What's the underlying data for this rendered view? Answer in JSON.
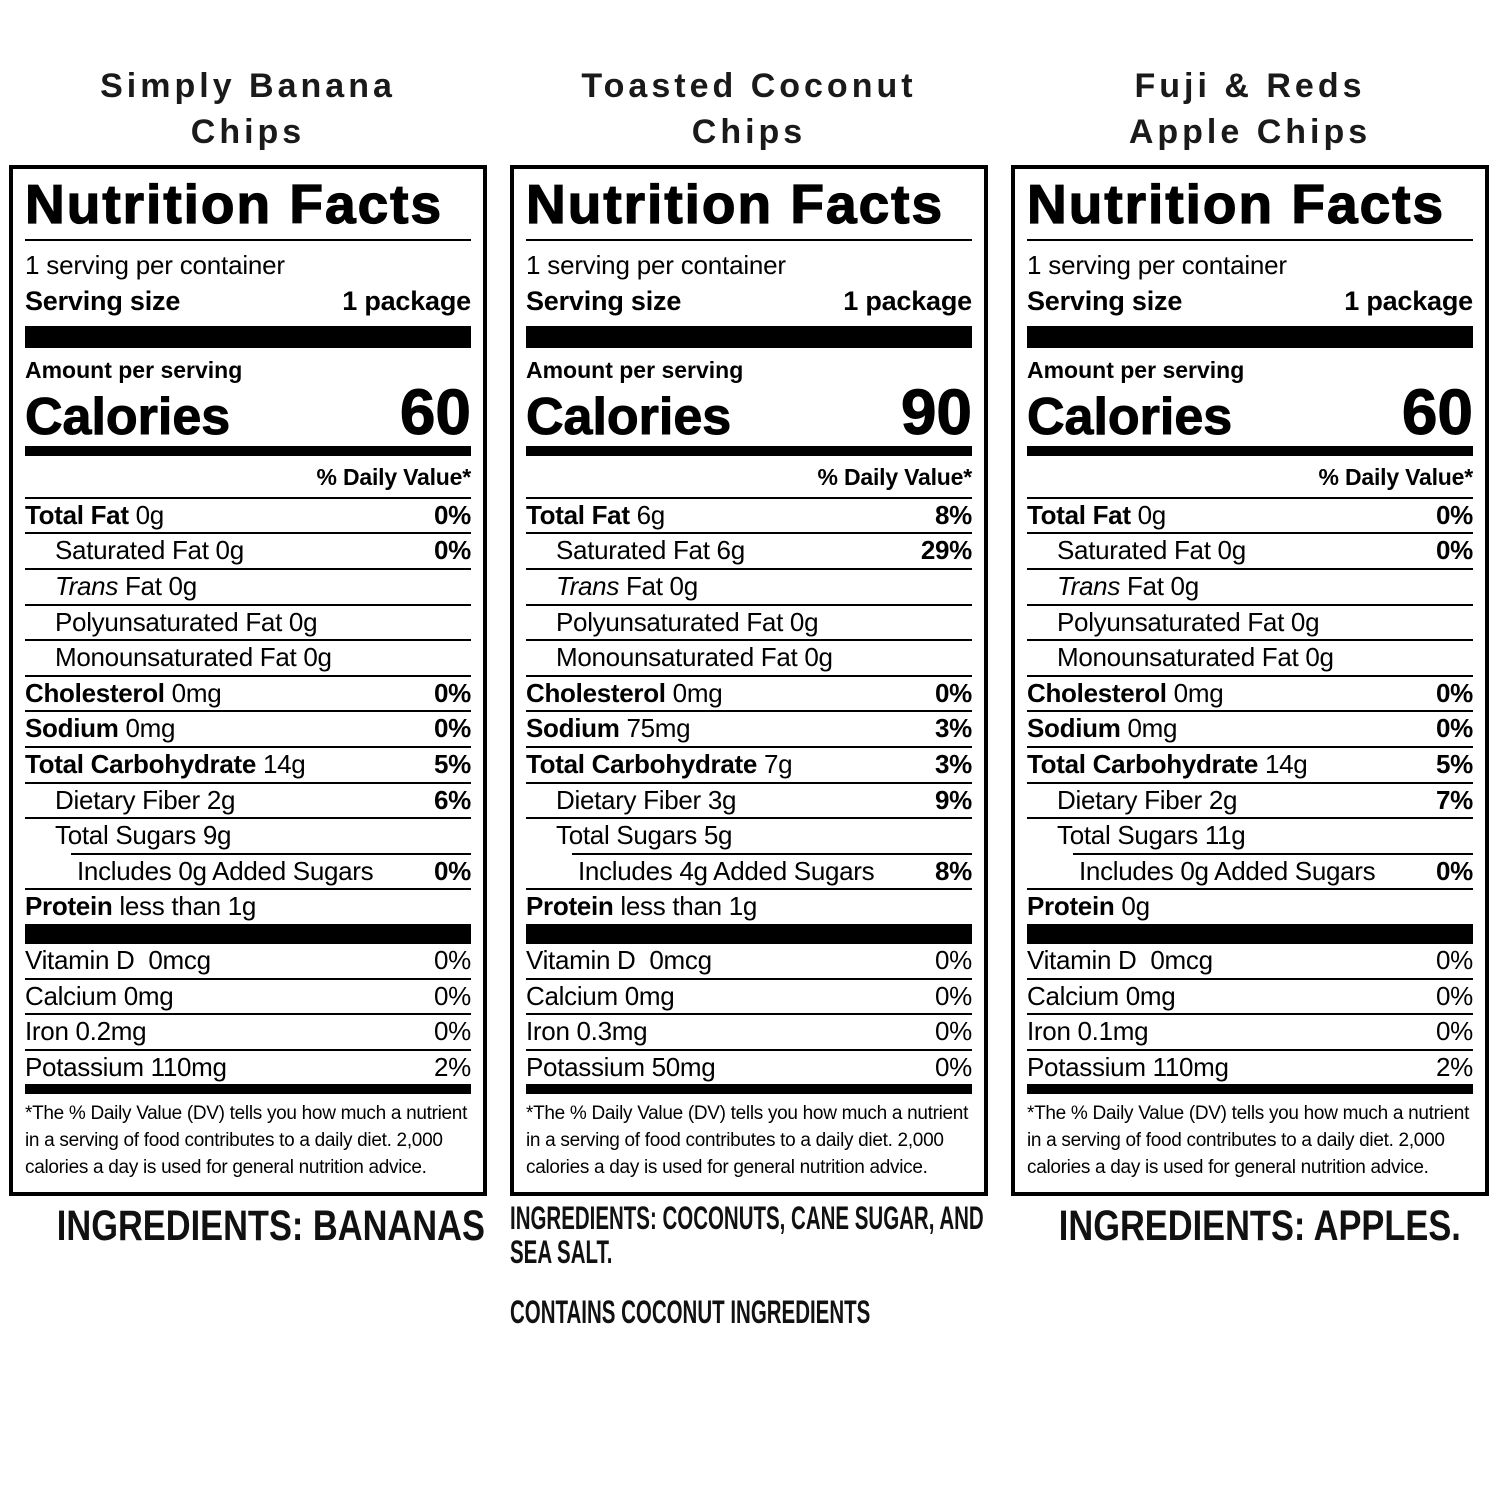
{
  "colors": {
    "text": "#000000",
    "background": "#ffffff"
  },
  "panels": [
    {
      "title_line1": "Simply Banana",
      "title_line2": "Chips",
      "nf_title": "Nutrition Facts",
      "servings_per_container": "1 serving per container",
      "serving_size_label": "Serving size",
      "serving_size_value": "1 package",
      "amount_per_serving_label": "Amount per serving",
      "calories_label": "Calories",
      "calories_value": "60",
      "daily_value_header": "% Daily Value*",
      "nutrient_rows": [
        {
          "bold": "Total Fat",
          "text": "0g",
          "pct": "0%",
          "pct_bold": true,
          "indent": 0
        },
        {
          "text": "Saturated Fat 0g",
          "pct": "0%",
          "pct_bold": true,
          "indent": 1
        },
        {
          "italic": "Trans",
          "text": "Fat 0g",
          "indent": 1
        },
        {
          "text": "Polyunsaturated Fat 0g",
          "indent": 1
        },
        {
          "text": "Monounsaturated Fat 0g",
          "indent": 1
        },
        {
          "bold": "Cholesterol",
          "text": "0mg",
          "pct": "0%",
          "pct_bold": true,
          "indent": 0
        },
        {
          "bold": "Sodium",
          "text": "0mg",
          "pct": "0%",
          "pct_bold": true,
          "indent": 0
        },
        {
          "bold": "Total Carbohydrate",
          "text": "14g",
          "pct": "5%",
          "pct_bold": true,
          "indent": 0
        },
        {
          "text": "Dietary Fiber 2g",
          "pct": "6%",
          "pct_bold": true,
          "indent": 1
        },
        {
          "text": "Total Sugars 9g",
          "indent": 1
        },
        {
          "text": "Includes 0g Added Sugars",
          "pct": "0%",
          "pct_bold": true,
          "indent": 2
        },
        {
          "bold": "Protein",
          "text": "less than 1g",
          "indent": 0
        }
      ],
      "vitamin_rows": [
        {
          "text": "Vitamin D  0mcg",
          "pct": "0%",
          "pct_bold": false
        },
        {
          "text": "Calcium 0mg",
          "pct": "0%",
          "pct_bold": false
        },
        {
          "text": "Iron 0.2mg",
          "pct": "0%",
          "pct_bold": false
        },
        {
          "text": "Potassium 110mg",
          "pct": "2%",
          "pct_bold": false
        }
      ],
      "footnote": "*The % Daily Value (DV) tells you how much a nutrient in a serving of food contributes to a daily diet. 2,000 calories a day is used for general nutrition advice.",
      "ingredients_lines": [
        "INGREDIENTS: BANANAS"
      ],
      "contains_lines": []
    },
    {
      "title_line1": "Toasted Coconut",
      "title_line2": "Chips",
      "nf_title": "Nutrition Facts",
      "servings_per_container": "1 serving per container",
      "serving_size_label": "Serving size",
      "serving_size_value": "1 package",
      "amount_per_serving_label": "Amount per serving",
      "calories_label": "Calories",
      "calories_value": "90",
      "daily_value_header": "% Daily Value*",
      "nutrient_rows": [
        {
          "bold": "Total Fat",
          "text": "6g",
          "pct": "8%",
          "pct_bold": true,
          "indent": 0
        },
        {
          "text": "Saturated Fat 6g",
          "pct": "29%",
          "pct_bold": true,
          "indent": 1
        },
        {
          "italic": "Trans",
          "text": "Fat 0g",
          "indent": 1
        },
        {
          "text": "Polyunsaturated Fat 0g",
          "indent": 1
        },
        {
          "text": "Monounsaturated Fat 0g",
          "indent": 1
        },
        {
          "bold": "Cholesterol",
          "text": "0mg",
          "pct": "0%",
          "pct_bold": true,
          "indent": 0
        },
        {
          "bold": "Sodium",
          "text": "75mg",
          "pct": "3%",
          "pct_bold": true,
          "indent": 0
        },
        {
          "bold": "Total Carbohydrate",
          "text": "7g",
          "pct": "3%",
          "pct_bold": true,
          "indent": 0
        },
        {
          "text": "Dietary Fiber 3g",
          "pct": "9%",
          "pct_bold": true,
          "indent": 1
        },
        {
          "text": "Total Sugars 5g",
          "indent": 1
        },
        {
          "text": "Includes 4g Added Sugars",
          "pct": "8%",
          "pct_bold": true,
          "indent": 2
        },
        {
          "bold": "Protein",
          "text": "less than 1g",
          "indent": 0
        }
      ],
      "vitamin_rows": [
        {
          "text": "Vitamin D  0mcg",
          "pct": "0%",
          "pct_bold": false
        },
        {
          "text": "Calcium 0mg",
          "pct": "0%",
          "pct_bold": false
        },
        {
          "text": "Iron 0.3mg",
          "pct": "0%",
          "pct_bold": false
        },
        {
          "text": "Potassium 50mg",
          "pct": "0%",
          "pct_bold": false
        }
      ],
      "footnote": "*The % Daily Value (DV) tells you how much a nutrient in a serving of food contributes to a daily diet. 2,000 calories a day is used for general nutrition advice.",
      "ingredients_lines": [
        "INGREDIENTS: COCONUTS, CANE SUGAR, AND",
        "SEA SALT."
      ],
      "contains_lines": [
        "CONTAINS COCONUT INGREDIENTS"
      ]
    },
    {
      "title_line1": "Fuji & Reds",
      "title_line2": "Apple Chips",
      "nf_title": "Nutrition Facts",
      "servings_per_container": "1 serving per container",
      "serving_size_label": "Serving size",
      "serving_size_value": "1 package",
      "amount_per_serving_label": "Amount per serving",
      "calories_label": "Calories",
      "calories_value": "60",
      "daily_value_header": "% Daily Value*",
      "nutrient_rows": [
        {
          "bold": "Total Fat",
          "text": "0g",
          "pct": "0%",
          "pct_bold": true,
          "indent": 0
        },
        {
          "text": "Saturated Fat 0g",
          "pct": "0%",
          "pct_bold": true,
          "indent": 1
        },
        {
          "italic": "Trans",
          "text": "Fat 0g",
          "indent": 1
        },
        {
          "text": "Polyunsaturated Fat 0g",
          "indent": 1
        },
        {
          "text": "Monounsaturated Fat 0g",
          "indent": 1
        },
        {
          "bold": "Cholesterol",
          "text": "0mg",
          "pct": "0%",
          "pct_bold": true,
          "indent": 0
        },
        {
          "bold": "Sodium",
          "text": "0mg",
          "pct": "0%",
          "pct_bold": true,
          "indent": 0
        },
        {
          "bold": "Total Carbohydrate",
          "text": "14g",
          "pct": "5%",
          "pct_bold": true,
          "indent": 0
        },
        {
          "text": "Dietary Fiber 2g",
          "pct": "7%",
          "pct_bold": true,
          "indent": 1
        },
        {
          "text": "Total Sugars 11g",
          "indent": 1
        },
        {
          "text": "Includes 0g Added Sugars",
          "pct": "0%",
          "pct_bold": true,
          "indent": 2
        },
        {
          "bold": "Protein",
          "text": "0g",
          "indent": 0
        }
      ],
      "vitamin_rows": [
        {
          "text": "Vitamin D  0mcg",
          "pct": "0%",
          "pct_bold": false
        },
        {
          "text": "Calcium 0mg",
          "pct": "0%",
          "pct_bold": false
        },
        {
          "text": "Iron 0.1mg",
          "pct": "0%",
          "pct_bold": false
        },
        {
          "text": "Potassium 110mg",
          "pct": "2%",
          "pct_bold": false
        }
      ],
      "footnote": "*The % Daily Value (DV) tells you how much a nutrient in a serving of food contributes to a daily diet. 2,000 calories a day is used for general nutrition advice.",
      "ingredients_lines": [
        "INGREDIENTS: APPLES."
      ],
      "contains_lines": []
    }
  ]
}
